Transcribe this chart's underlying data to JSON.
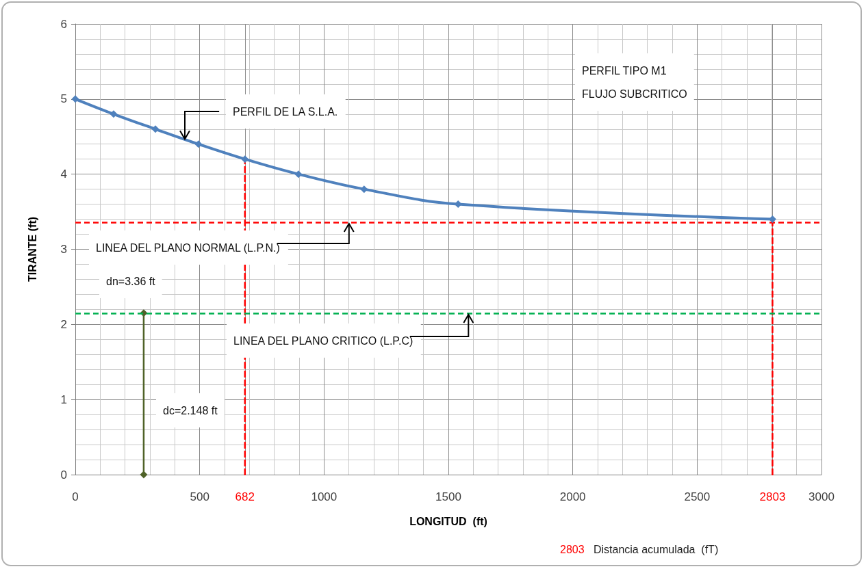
{
  "chart_data": {
    "type": "line",
    "xlabel": "LONGITUD  (ft)",
    "ylabel": "TIRANTE (ft)",
    "xlim": [
      0,
      3000
    ],
    "xticks": [
      0,
      500,
      682,
      1000,
      1500,
      2000,
      2500,
      2803,
      3000
    ],
    "ylim": [
      0,
      6
    ],
    "yticks": [
      0,
      1,
      2,
      3,
      4,
      5,
      6
    ],
    "grid": true,
    "marker": "diamond",
    "line_style": "solid",
    "series": [
      {
        "color": "#4f81bd",
        "x": [
          0,
          154,
          322,
          495,
          682,
          897,
          1161,
          1539,
          2803
        ],
        "values": [
          5,
          4.8,
          4.6,
          4.4,
          4.2,
          4.0,
          3.8,
          3.6,
          3.4
        ]
      },
      {
        "type": "line",
        "color": "#ff0000",
        "line_style": "dashed",
        "marker": "none",
        "x": [
          682,
          682
        ],
        "values": [
          0,
          4.2
        ]
      },
      {
        "type": "line",
        "color": "#ff0000",
        "line_style": "dashed",
        "marker": "none",
        "x": [
          2803,
          2803
        ],
        "values": [
          0,
          3.4
        ]
      },
      {
        "type": "line",
        "color": "#4f6228",
        "marker": "diamond",
        "x": [
          275,
          275
        ],
        "values": [
          0,
          2.15
        ]
      }
    ],
    "ref_lines": [
      {
        "axis": "y",
        "value": 3.36,
        "color": "#ff0000",
        "line_style": "dashed"
      },
      {
        "axis": "y",
        "value": 2.148,
        "color": "#00b050",
        "line_style": "dashed"
      }
    ],
    "annotations": [
      {
        "text": "PERFIL DE LA S.L.A.",
        "x": 440,
        "y": 4.45
      },
      "PERFIL TIPO M1\nFLUJO SUBCRITICO",
      {
        "text": "LINEA DEL PLANO NORMAL (L.P.N.)",
        "x": 1100,
        "y": 3.36
      },
      "dn=3.36 ft",
      {
        "text": "LINEA DEL PLANO CRITICO (L.P.C)",
        "x": 1580,
        "y": 2.148
      },
      "dc=2.148 ft",
      "2803   Distancia acumulada  (fT)"
    ]
  }
}
